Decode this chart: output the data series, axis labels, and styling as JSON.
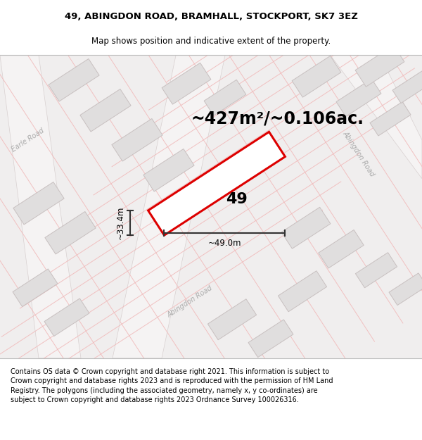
{
  "title_line1": "49, ABINGDON ROAD, BRAMHALL, STOCKPORT, SK7 3EZ",
  "title_line2": "Map shows position and indicative extent of the property.",
  "area_text": "~427m²/~0.106ac.",
  "label_49": "49",
  "width_label": "~49.0m",
  "height_label": "~33.4m",
  "footer_text": "Contains OS data © Crown copyright and database right 2021. This information is subject to Crown copyright and database rights 2023 and is reproduced with the permission of HM Land Registry. The polygons (including the associated geometry, namely x, y co-ordinates) are subject to Crown copyright and database rights 2023 Ordnance Survey 100026316.",
  "bg_color": "#f0eeee",
  "road_fill": "#ffffff",
  "road_line_color": "#f0b8b8",
  "road_border_color": "#d8d0d0",
  "bldg_fill": "#e0dede",
  "bldg_edge": "#c8c0c0",
  "prop_fill": "#ffffff",
  "prop_edge": "#dd0000",
  "dim_color": "#333333",
  "road_label_color": "#aaaaaa",
  "title_fontsize": 9.5,
  "subtitle_fontsize": 8.5,
  "area_fontsize": 17,
  "label49_fontsize": 16,
  "measure_fontsize": 8.5,
  "road_label_fontsize": 7,
  "footer_fontsize": 7.0
}
